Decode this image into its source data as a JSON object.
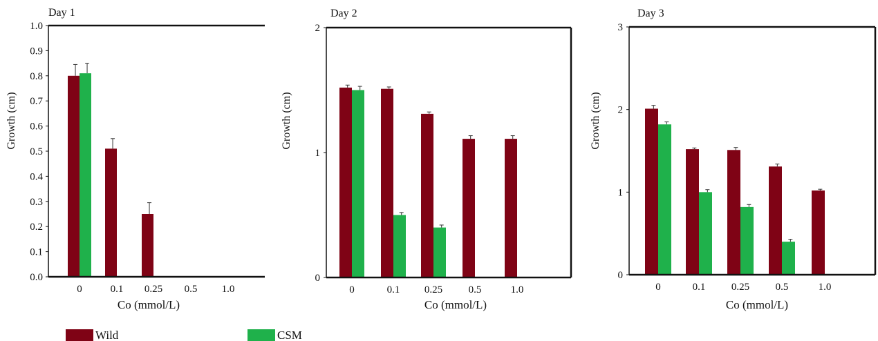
{
  "colors": {
    "wild": "#7f0315",
    "csm": "#1fb14b",
    "axis": "#111111"
  },
  "legend": {
    "wild": "Wild",
    "csm": "CSM"
  },
  "chart_data": [
    {
      "type": "bar",
      "title": "Day 1",
      "xlabel": "Co (mmol/L)",
      "ylabel": "Growth (cm)",
      "categories": [
        "0",
        "0.1",
        "0.25",
        "0.5",
        "1.0"
      ],
      "yticks": [
        "0.0",
        "0.1",
        "0.2",
        "0.3",
        "0.4",
        "0.5",
        "0.6",
        "0.7",
        "0.8",
        "0.9",
        "1.0"
      ],
      "ylim": [
        0,
        1.0
      ],
      "series": [
        {
          "name": "Wild",
          "values": [
            0.8,
            0.51,
            0.25,
            0,
            0
          ],
          "errors": [
            0.045,
            0.04,
            0.045,
            0,
            0
          ]
        },
        {
          "name": "CSM",
          "values": [
            0.81,
            0,
            0,
            0,
            0
          ],
          "errors": [
            0.04,
            0,
            0,
            0,
            0
          ]
        }
      ]
    },
    {
      "type": "bar",
      "title": "Day 2",
      "xlabel": "Co (mmol/L)",
      "ylabel": "Growth (cm)",
      "categories": [
        "0",
        "0.1",
        "0.25",
        "0.5",
        "1.0"
      ],
      "yticks": [
        "0",
        "1",
        "2"
      ],
      "ylim": [
        0,
        2
      ],
      "series": [
        {
          "name": "Wild",
          "values": [
            1.52,
            1.51,
            1.31,
            1.11,
            1.11
          ],
          "errors": [
            0.02,
            0.015,
            0.015,
            0.025,
            0.025
          ]
        },
        {
          "name": "CSM",
          "values": [
            1.5,
            0.5,
            0.4,
            0,
            0
          ],
          "errors": [
            0.03,
            0.02,
            0.02,
            0,
            0
          ]
        }
      ]
    },
    {
      "type": "bar",
      "title": "Day 3",
      "xlabel": "Co (mmol/L)",
      "ylabel": "Growth (cm)",
      "categories": [
        "0",
        "0.1",
        "0.25",
        "0.5",
        "1.0"
      ],
      "yticks": [
        "0",
        "1",
        "2",
        "3"
      ],
      "ylim": [
        0,
        3
      ],
      "series": [
        {
          "name": "Wild",
          "values": [
            2.01,
            1.52,
            1.51,
            1.31,
            1.02
          ],
          "errors": [
            0.04,
            0.015,
            0.03,
            0.03,
            0.015
          ]
        },
        {
          "name": "CSM",
          "values": [
            1.82,
            1.0,
            0.82,
            0.4,
            0
          ],
          "errors": [
            0.03,
            0.03,
            0.03,
            0.03,
            0
          ]
        }
      ]
    }
  ]
}
